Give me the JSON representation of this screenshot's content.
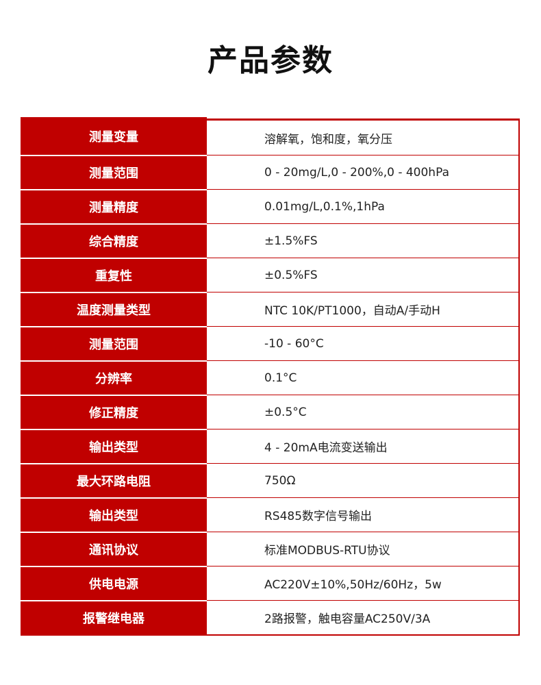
{
  "title": "产品参数",
  "rows": [
    {
      "label": "测量变量",
      "value": "溶解氧，饱和度，氧分压"
    },
    {
      "label": "测量范围",
      "value": "0 - 20mg/L,0 - 200%,0 - 400hPa"
    },
    {
      "label": "测量精度",
      "value": "0.01mg/L,0.1%,1hPa"
    },
    {
      "label": "综合精度",
      "value": "±1.5%FS"
    },
    {
      "label": "重复性",
      "value": "±0.5%FS"
    },
    {
      "label": "温度测量类型",
      "value": "NTC 10K/PT1000，自动A/手动H"
    },
    {
      "label": "测量范围",
      "value": "-10 - 60°C"
    },
    {
      "label": "分辨率",
      "value": "0.1°C"
    },
    {
      "label": "修正精度",
      "value": "±0.5°C"
    },
    {
      "label": "输出类型",
      "value": "4 - 20mA电流变送输出"
    },
    {
      "label": "最大环路电阻",
      "value": "750Ω"
    },
    {
      "label": "输出类型",
      "value": "RS485数字信号输出"
    },
    {
      "label": "通讯协议",
      "value": "标准MODBUS-RTU协议"
    },
    {
      "label": "供电电源",
      "value": "AC220V±10%,50Hz/60Hz，5w"
    },
    {
      "label": "报警继电器",
      "value": "2路报警，触电容量AC250V/3A"
    }
  ],
  "colors": {
    "accent": "#c00000"
  }
}
